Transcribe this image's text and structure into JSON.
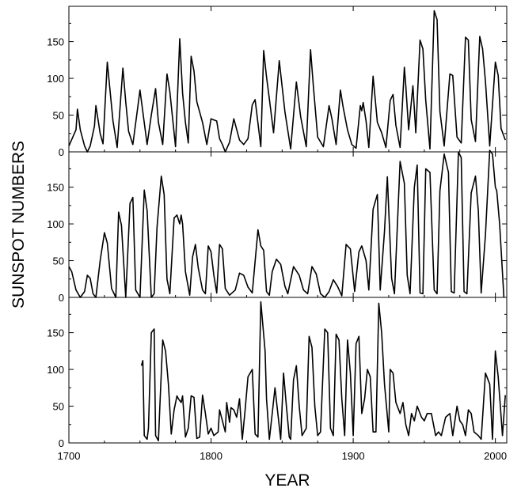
{
  "chart_data": {
    "type": "line",
    "xlabel": "YEAR",
    "ylabel": "SUNSPOT NUMBERS",
    "x_ticks": [
      1700,
      1800,
      1900,
      2000
    ],
    "xlim": [
      1700,
      2008
    ],
    "colors": {
      "line": "#000000",
      "frame": "#000000",
      "background": "#ffffff"
    },
    "panels": [
      {
        "ylim": [
          0,
          198
        ],
        "y_ticks": [
          0,
          50,
          100,
          150
        ],
        "x": [
          1700,
          1705,
          1706,
          1708,
          1711,
          1713,
          1715,
          1718,
          1719,
          1722,
          1724,
          1727,
          1731,
          1734,
          1738,
          1740,
          1742,
          1745,
          1750,
          1755,
          1758,
          1761,
          1763,
          1766,
          1769,
          1771,
          1775,
          1778,
          1780,
          1782,
          1784,
          1786,
          1788,
          1790,
          1794,
          1797,
          1800,
          1804,
          1806,
          1808,
          1810,
          1813,
          1816,
          1820,
          1823,
          1826,
          1829,
          1831,
          1835,
          1837,
          1839,
          1841,
          1844,
          1848,
          1852,
          1856,
          1860,
          1863,
          1867,
          1870,
          1872,
          1875,
          1879,
          1883,
          1885,
          1888,
          1891,
          1893,
          1896,
          1899,
          1902,
          1905,
          1906,
          1907,
          1909,
          1911,
          1914,
          1917,
          1920,
          1923,
          1926,
          1928,
          1930,
          1933,
          1936,
          1937,
          1939,
          1942,
          1944,
          1947,
          1949,
          1951,
          1954,
          1957,
          1959,
          1961,
          1964,
          1968,
          1970,
          1973,
          1976,
          1979,
          1981,
          1983,
          1986,
          1989,
          1991,
          1993,
          1996,
          2000,
          2002,
          2004,
          2007
        ],
        "values": [
          8,
          30,
          58,
          30,
          8,
          0,
          8,
          35,
          63,
          25,
          11,
          122,
          42,
          6,
          114,
          68,
          28,
          10,
          84,
          10,
          50,
          86,
          40,
          10,
          106,
          82,
          7,
          154,
          80,
          40,
          12,
          130,
          110,
          68,
          40,
          10,
          45,
          42,
          18,
          10,
          0,
          13,
          45,
          16,
          10,
          18,
          64,
          71,
          7,
          138,
          102,
          72,
          26,
          124,
          54,
          4,
          95,
          48,
          7,
          139,
          89,
          20,
          7,
          63,
          45,
          10,
          84,
          60,
          30,
          10,
          5,
          63,
          56,
          67,
          42,
          6,
          103,
          40,
          26,
          6,
          70,
          78,
          36,
          6,
          115,
          90,
          30,
          90,
          26,
          152,
          140,
          70,
          4,
          192,
          180,
          55,
          8,
          106,
          104,
          20,
          12,
          156,
          152,
          44,
          14,
          157,
          140,
          96,
          8,
          122,
          104,
          32,
          16
        ]
      },
      {
        "ylim": [
          0,
          198
        ],
        "y_ticks": [
          0,
          50,
          100,
          150
        ],
        "x": [
          1700,
          1702,
          1705,
          1708,
          1711,
          1713,
          1715,
          1717,
          1719,
          1722,
          1725,
          1727,
          1730,
          1733,
          1735,
          1737,
          1740,
          1743,
          1745,
          1747,
          1750,
          1753,
          1755,
          1758,
          1760,
          1762,
          1765,
          1767,
          1769,
          1771,
          1774,
          1776,
          1778,
          1779,
          1780,
          1782,
          1785,
          1787,
          1789,
          1791,
          1794,
          1796,
          1798,
          1800,
          1802,
          1804,
          1806,
          1808,
          1810,
          1813,
          1817,
          1820,
          1823,
          1826,
          1829,
          1833,
          1835,
          1837,
          1839,
          1841,
          1843,
          1846,
          1849,
          1852,
          1854,
          1858,
          1862,
          1865,
          1868,
          1871,
          1874,
          1877,
          1880,
          1883,
          1886,
          1889,
          1892,
          1895,
          1898,
          1901,
          1904,
          1906,
          1909,
          1911,
          1914,
          1917,
          1919,
          1922,
          1924,
          1927,
          1929,
          1933,
          1936,
          1938,
          1940,
          1943,
          1945,
          1947,
          1949,
          1951,
          1954,
          1957,
          1959,
          1961,
          1964,
          1967,
          1969,
          1971,
          1974,
          1976,
          1978,
          1980,
          1983,
          1986,
          1988,
          1990,
          1993,
          1996,
          1998,
          2000,
          2001,
          2003,
          2006
        ],
        "values": [
          42,
          35,
          10,
          0,
          8,
          30,
          26,
          5,
          0,
          50,
          88,
          74,
          12,
          0,
          116,
          98,
          0,
          128,
          136,
          10,
          0,
          146,
          118,
          0,
          5,
          95,
          165,
          140,
          25,
          5,
          108,
          112,
          100,
          112,
          100,
          35,
          3,
          55,
          72,
          40,
          10,
          5,
          70,
          62,
          30,
          6,
          72,
          66,
          12,
          3,
          10,
          33,
          30,
          14,
          6,
          92,
          70,
          64,
          8,
          3,
          35,
          52,
          45,
          15,
          5,
          42,
          30,
          10,
          5,
          42,
          32,
          5,
          0,
          8,
          24,
          15,
          2,
          72,
          66,
          8,
          62,
          70,
          50,
          10,
          120,
          140,
          10,
          90,
          164,
          26,
          5,
          185,
          155,
          30,
          5,
          150,
          180,
          6,
          5,
          175,
          170,
          10,
          5,
          145,
          195,
          170,
          8,
          6,
          198,
          190,
          8,
          5,
          142,
          165,
          118,
          6,
          85,
          200,
          195,
          150,
          145,
          100,
          0
        ]
      },
      {
        "ylim": [
          0,
          198
        ],
        "y_ticks": [
          0,
          50,
          100,
          150
        ],
        "x": [
          1751,
          1752,
          1753,
          1755,
          1756,
          1758,
          1760,
          1761,
          1763,
          1764,
          1766,
          1768,
          1770,
          1772,
          1774,
          1776,
          1777,
          1779,
          1780,
          1782,
          1784,
          1786,
          1788,
          1790,
          1792,
          1794,
          1796,
          1798,
          1800,
          1802,
          1805,
          1806,
          1808,
          1810,
          1811,
          1813,
          1814,
          1816,
          1818,
          1820,
          1822,
          1824,
          1826,
          1829,
          1831,
          1833,
          1835,
          1838,
          1839,
          1841,
          1843,
          1845,
          1847,
          1849,
          1851,
          1853,
          1855,
          1856,
          1858,
          1860,
          1862,
          1864,
          1867,
          1869,
          1871,
          1873,
          1875,
          1877,
          1880,
          1882,
          1884,
          1886,
          1888,
          1890,
          1892,
          1894,
          1896,
          1898,
          1900,
          1902,
          1904,
          1906,
          1908,
          1910,
          1912,
          1914,
          1916,
          1918,
          1920,
          1922,
          1925,
          1926,
          1928,
          1930,
          1933,
          1935,
          1937,
          1939,
          1941,
          1943,
          1945,
          1948,
          1950,
          1952,
          1955,
          1958,
          1960,
          1962,
          1965,
          1968,
          1970,
          1973,
          1975,
          1977,
          1979,
          1981,
          1983,
          1985,
          1988,
          1990,
          1993,
          1996,
          1998,
          2000,
          2002,
          2005,
          2007
        ],
        "values": [
          105,
          112,
          10,
          5,
          20,
          150,
          155,
          10,
          3,
          50,
          140,
          125,
          80,
          12,
          45,
          64,
          60,
          55,
          64,
          8,
          20,
          64,
          62,
          6,
          8,
          65,
          40,
          12,
          20,
          10,
          15,
          45,
          30,
          15,
          55,
          28,
          48,
          45,
          35,
          60,
          5,
          45,
          90,
          100,
          12,
          8,
          192,
          125,
          60,
          5,
          40,
          75,
          40,
          5,
          95,
          50,
          8,
          5,
          86,
          105,
          50,
          10,
          20,
          145,
          130,
          50,
          10,
          15,
          155,
          150,
          20,
          10,
          148,
          140,
          60,
          10,
          140,
          95,
          10,
          135,
          145,
          40,
          60,
          100,
          90,
          15,
          15,
          190,
          150,
          80,
          15,
          100,
          95,
          55,
          40,
          55,
          25,
          10,
          40,
          30,
          50,
          35,
          30,
          40,
          40,
          10,
          15,
          10,
          35,
          40,
          10,
          50,
          30,
          25,
          10,
          45,
          40,
          15,
          10,
          5,
          95,
          80,
          5,
          125,
          90,
          10,
          65
        ]
      }
    ]
  }
}
